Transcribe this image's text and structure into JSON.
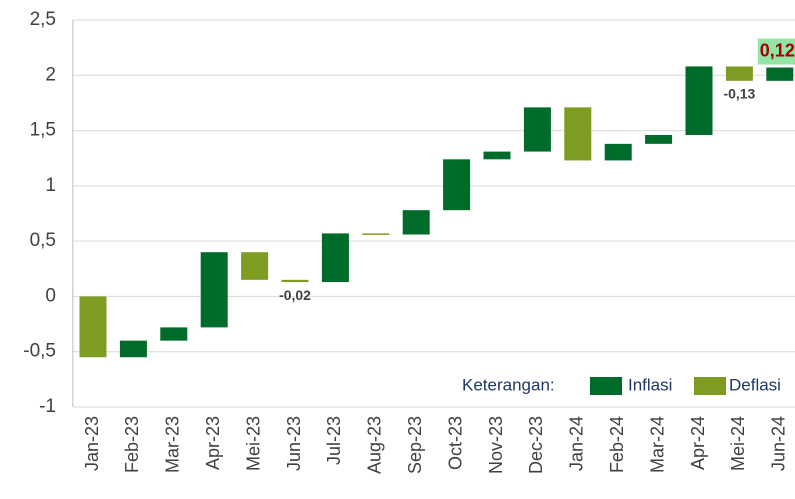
{
  "chart_data": {
    "type": "waterfall",
    "categories": [
      "Jan-23",
      "Feb-23",
      "Mar-23",
      "Apr-23",
      "Mei-23",
      "Jun-23",
      "Jul-23",
      "Aug-23",
      "Sep-23",
      "Oct-23",
      "Nov-23",
      "Dec-23",
      "Jan-24",
      "Feb-24",
      "Mar-24",
      "Apr-24",
      "Mei-24",
      "Jun-24"
    ],
    "values": [
      -0.55,
      0.15,
      0.12,
      0.68,
      -0.25,
      -0.02,
      0.44,
      -0.01,
      0.22,
      0.46,
      0.07,
      0.4,
      -0.48,
      0.15,
      0.08,
      0.62,
      -0.13,
      0.12
    ],
    "value_labels": [
      null,
      null,
      null,
      null,
      null,
      "-0,02",
      null,
      null,
      null,
      null,
      null,
      null,
      null,
      null,
      null,
      null,
      "-0,13",
      "0,12"
    ],
    "ylim": [
      -1,
      2.5
    ],
    "yticks": [
      -1,
      {
        "value": -0.5,
        "label": "-0,5"
      },
      0,
      {
        "value": 0.5,
        "label": "0,5"
      },
      1,
      {
        "value": 1.5,
        "label": "1,5"
      },
      2,
      {
        "value": 2.5,
        "label": "2,5"
      }
    ],
    "grid": true,
    "legend": {
      "title": "Keterangan:",
      "position": "lower right",
      "items": [
        {
          "name": "Inflasi",
          "color": "#006b2b"
        },
        {
          "name": "Deflasi",
          "color": "#7f9c22"
        }
      ]
    }
  }
}
